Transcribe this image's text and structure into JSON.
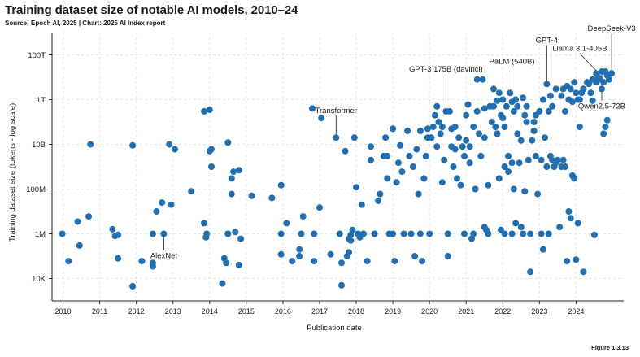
{
  "header": {
    "title": "Training dataset size of notable AI models, 2010–24",
    "source": "Source: Epoch AI, 2025 | Chart: 2025 AI Index report"
  },
  "footer": {
    "figure_label": "Figure 1.3.13"
  },
  "chart_data": {
    "type": "scatter",
    "title": "Training dataset size of notable AI models, 2010–24",
    "xlabel": "Publication date",
    "ylabel": "Training dataset size (tokens - log scale)",
    "xlim": [
      2009.7,
      2025.3
    ],
    "ylim": [
      1000,
      1000000000000000.0
    ],
    "y_scale": "log",
    "x_ticks": [
      2010,
      2011,
      2012,
      2013,
      2014,
      2015,
      2016,
      2017,
      2018,
      2019,
      2020,
      2021,
      2022,
      2023,
      2024
    ],
    "y_ticks": [
      {
        "value": 10000,
        "label": "10K"
      },
      {
        "value": 1000000,
        "label": "1M"
      },
      {
        "value": 100000000,
        "label": "100M"
      },
      {
        "value": 10000000000,
        "label": "10B"
      },
      {
        "value": 1000000000000,
        "label": "1T"
      },
      {
        "value": 100000000000000,
        "label": "100T"
      }
    ],
    "grid": true,
    "point_color": "#1f6fb2",
    "annotations": [
      {
        "label": "AlexNet",
        "x": 2012.75,
        "y": 1000000,
        "text_x": 2012.75,
        "text_y": 80000
      },
      {
        "label": "Transformer",
        "x": 2017.45,
        "y": 20000000000,
        "text_x": 2017.45,
        "text_y": 250000000000
      },
      {
        "label": "GPT-3 175B (davinci)",
        "x": 2020.45,
        "y": 300000000000,
        "text_x": 2020.45,
        "text_y": 18000000000000
      },
      {
        "label": "PaLM (540B)",
        "x": 2022.25,
        "y": 800000000000,
        "text_x": 2022.25,
        "text_y": 40000000000000
      },
      {
        "label": "GPT-4",
        "x": 2023.2,
        "y": 5000000000000,
        "text_x": 2023.2,
        "text_y": 350000000000000
      },
      {
        "label": "Llama 3.1-405B",
        "x": 2024.55,
        "y": 15000000000000,
        "text_x": 2024.1,
        "text_y": 150000000000000
      },
      {
        "label": "DeepSeek-V3",
        "x": 2024.97,
        "y": 15000000000000,
        "text_x": 2024.97,
        "text_y": 1200000000000000
      },
      {
        "label": "Qwen2.5-72B",
        "x": 2024.7,
        "y": 18000000000000,
        "text_x": 2024.7,
        "text_y": 400000000000
      }
    ],
    "points": [
      {
        "x": 2009.98,
        "y": 1000000
      },
      {
        "x": 2010.15,
        "y": 60000
      },
      {
        "x": 2010.4,
        "y": 3500000
      },
      {
        "x": 2010.45,
        "y": 300000
      },
      {
        "x": 2010.7,
        "y": 6000000
      },
      {
        "x": 2010.75,
        "y": 10000000000
      },
      {
        "x": 2011.35,
        "y": 1600000
      },
      {
        "x": 2011.42,
        "y": 800000
      },
      {
        "x": 2011.5,
        "y": 900000
      },
      {
        "x": 2011.5,
        "y": 80000
      },
      {
        "x": 2011.9,
        "y": 9000000000
      },
      {
        "x": 2011.9,
        "y": 4500
      },
      {
        "x": 2012.15,
        "y": 60000
      },
      {
        "x": 2012.45,
        "y": 1000000
      },
      {
        "x": 2012.45,
        "y": 50000
      },
      {
        "x": 2012.45,
        "y": 35000
      },
      {
        "x": 2012.55,
        "y": 10000000
      },
      {
        "x": 2012.7,
        "y": 25000000
      },
      {
        "x": 2012.75,
        "y": 1000000
      },
      {
        "x": 2012.9,
        "y": 10000000000
      },
      {
        "x": 2012.95,
        "y": 20000000
      },
      {
        "x": 2013.05,
        "y": 6000000000
      },
      {
        "x": 2013.5,
        "y": 80000000
      },
      {
        "x": 2013.85,
        "y": 300000000000
      },
      {
        "x": 2013.85,
        "y": 3000000
      },
      {
        "x": 2013.9,
        "y": 700000
      },
      {
        "x": 2013.92,
        "y": 1000000
      },
      {
        "x": 2014.0,
        "y": 5000000000
      },
      {
        "x": 2014.05,
        "y": 6000000000
      },
      {
        "x": 2014.05,
        "y": 1000000000
      },
      {
        "x": 2014.0,
        "y": 350000000000
      },
      {
        "x": 2014.4,
        "y": 80000
      },
      {
        "x": 2014.45,
        "y": 50000
      },
      {
        "x": 2014.35,
        "y": 6000
      },
      {
        "x": 2014.5,
        "y": 12000000000
      },
      {
        "x": 2014.5,
        "y": 1000000
      },
      {
        "x": 2014.5,
        "y": 1000000
      },
      {
        "x": 2014.6,
        "y": 300000000
      },
      {
        "x": 2014.6,
        "y": 60000000
      },
      {
        "x": 2014.65,
        "y": 600000000
      },
      {
        "x": 2014.7,
        "y": 1200000
      },
      {
        "x": 2014.8,
        "y": 700000000
      },
      {
        "x": 2014.8,
        "y": 40000
      },
      {
        "x": 2014.85,
        "y": 600000
      },
      {
        "x": 2015.15,
        "y": 50000000
      },
      {
        "x": 2015.7,
        "y": 40000000
      },
      {
        "x": 2015.95,
        "y": 150000000
      },
      {
        "x": 2015.95,
        "y": 1000000
      },
      {
        "x": 2015.95,
        "y": 120000
      },
      {
        "x": 2016.1,
        "y": 3000000
      },
      {
        "x": 2016.25,
        "y": 60000
      },
      {
        "x": 2016.45,
        "y": 200000
      },
      {
        "x": 2016.45,
        "y": 100000
      },
      {
        "x": 2016.5,
        "y": 1000000
      },
      {
        "x": 2016.55,
        "y": 6000000
      },
      {
        "x": 2016.8,
        "y": 400000000000
      },
      {
        "x": 2016.85,
        "y": 60000
      },
      {
        "x": 2016.85,
        "y": 1000000
      },
      {
        "x": 2017.0,
        "y": 15000000
      },
      {
        "x": 2017.05,
        "y": 150000000000
      },
      {
        "x": 2017.3,
        "y": 120000
      },
      {
        "x": 2017.45,
        "y": 20000000000
      },
      {
        "x": 2017.55,
        "y": 1000000
      },
      {
        "x": 2017.6,
        "y": 50000
      },
      {
        "x": 2017.6,
        "y": 5000
      },
      {
        "x": 2017.7,
        "y": 5000000000
      },
      {
        "x": 2017.75,
        "y": 100000
      },
      {
        "x": 2017.8,
        "y": 600000
      },
      {
        "x": 2017.8,
        "y": 150000
      },
      {
        "x": 2017.85,
        "y": 900000
      },
      {
        "x": 2017.85,
        "y": 500000
      },
      {
        "x": 2017.9,
        "y": 1500000
      },
      {
        "x": 2017.95,
        "y": 20000000000
      },
      {
        "x": 2018.0,
        "y": 120000000
      },
      {
        "x": 2018.05,
        "y": 1000000
      },
      {
        "x": 2018.1,
        "y": 700000
      },
      {
        "x": 2018.15,
        "y": 20000000
      },
      {
        "x": 2018.2,
        "y": 1000000
      },
      {
        "x": 2018.3,
        "y": 60000
      },
      {
        "x": 2018.4,
        "y": 8000000000
      },
      {
        "x": 2018.4,
        "y": 2000000000
      },
      {
        "x": 2018.5,
        "y": 1000000
      },
      {
        "x": 2018.6,
        "y": 30000000
      },
      {
        "x": 2018.65,
        "y": 60000000
      },
      {
        "x": 2018.75,
        "y": 3000000000
      },
      {
        "x": 2018.8,
        "y": 20000000000
      },
      {
        "x": 2018.85,
        "y": 3000000000
      },
      {
        "x": 2018.85,
        "y": 300000000
      },
      {
        "x": 2018.9,
        "y": 1000000
      },
      {
        "x": 2019.0,
        "y": 50000000000
      },
      {
        "x": 2019.0,
        "y": 1000000
      },
      {
        "x": 2019.05,
        "y": 60000
      },
      {
        "x": 2019.1,
        "y": 200000000
      },
      {
        "x": 2019.15,
        "y": 1500000000
      },
      {
        "x": 2019.2,
        "y": 9000000000
      },
      {
        "x": 2019.25,
        "y": 600000000
      },
      {
        "x": 2019.3,
        "y": 1000000
      },
      {
        "x": 2019.4,
        "y": 40000000000
      },
      {
        "x": 2019.45,
        "y": 3000000000
      },
      {
        "x": 2019.5,
        "y": 1000000
      },
      {
        "x": 2019.55,
        "y": 1000000000
      },
      {
        "x": 2019.6,
        "y": 100000
      },
      {
        "x": 2019.65,
        "y": 6000000000
      },
      {
        "x": 2019.7,
        "y": 60000000
      },
      {
        "x": 2019.75,
        "y": 40000000000
      },
      {
        "x": 2019.75,
        "y": 1000000
      },
      {
        "x": 2019.8,
        "y": 60000
      },
      {
        "x": 2019.85,
        "y": 300000000
      },
      {
        "x": 2019.9,
        "y": 3000000000
      },
      {
        "x": 2019.95,
        "y": 50000000000
      },
      {
        "x": 2019.95,
        "y": 20000000000
      },
      {
        "x": 2020.0,
        "y": 1000000
      },
      {
        "x": 2020.05,
        "y": 20000000000
      },
      {
        "x": 2020.1,
        "y": 60000000000
      },
      {
        "x": 2020.15,
        "y": 200000000000
      },
      {
        "x": 2020.2,
        "y": 500000000000
      },
      {
        "x": 2020.2,
        "y": 8000000000
      },
      {
        "x": 2020.25,
        "y": 100000000000
      },
      {
        "x": 2020.3,
        "y": 30000000000
      },
      {
        "x": 2020.35,
        "y": 200000000
      },
      {
        "x": 2020.35,
        "y": 60000000000
      },
      {
        "x": 2020.4,
        "y": 2000000000
      },
      {
        "x": 2020.45,
        "y": 300000000000
      },
      {
        "x": 2020.5,
        "y": 1000000
      },
      {
        "x": 2020.5,
        "y": 100000
      },
      {
        "x": 2020.55,
        "y": 300000000000
      },
      {
        "x": 2020.6,
        "y": 50000000000
      },
      {
        "x": 2020.6,
        "y": 8000000000
      },
      {
        "x": 2020.65,
        "y": 1000000000
      },
      {
        "x": 2020.7,
        "y": 60000000000
      },
      {
        "x": 2020.7,
        "y": 6000000000
      },
      {
        "x": 2020.75,
        "y": 300000000
      },
      {
        "x": 2020.8,
        "y": 20000000000
      },
      {
        "x": 2020.85,
        "y": 150000000
      },
      {
        "x": 2020.9,
        "y": 8000000000
      },
      {
        "x": 2020.95,
        "y": 3000000000
      },
      {
        "x": 2020.95,
        "y": 1000000
      },
      {
        "x": 2021.0,
        "y": 200000000000
      },
      {
        "x": 2021.0,
        "y": 15000000000
      },
      {
        "x": 2021.05,
        "y": 600000000000
      },
      {
        "x": 2021.1,
        "y": 8000000000
      },
      {
        "x": 2021.1,
        "y": 1500000000
      },
      {
        "x": 2021.15,
        "y": 600000
      },
      {
        "x": 2021.2,
        "y": 1000000
      },
      {
        "x": 2021.2,
        "y": 60000000000
      },
      {
        "x": 2021.25,
        "y": 100000000
      },
      {
        "x": 2021.3,
        "y": 8000000000000
      },
      {
        "x": 2021.3,
        "y": 300000000000
      },
      {
        "x": 2021.35,
        "y": 30000000000
      },
      {
        "x": 2021.4,
        "y": 3000000000
      },
      {
        "x": 2021.45,
        "y": 8000000000000
      },
      {
        "x": 2021.5,
        "y": 400000000000
      },
      {
        "x": 2021.5,
        "y": 20000000000
      },
      {
        "x": 2021.5,
        "y": 2000000
      },
      {
        "x": 2021.55,
        "y": 1500000
      },
      {
        "x": 2021.6,
        "y": 150000000
      },
      {
        "x": 2021.6,
        "y": 1000000
      },
      {
        "x": 2021.65,
        "y": 500000000000
      },
      {
        "x": 2021.7,
        "y": 100000000000
      },
      {
        "x": 2021.75,
        "y": 3000000000000
      },
      {
        "x": 2021.75,
        "y": 500000000000
      },
      {
        "x": 2021.8,
        "y": 60000000000
      },
      {
        "x": 2021.85,
        "y": 900000000000
      },
      {
        "x": 2021.85,
        "y": 30000000000
      },
      {
        "x": 2021.9,
        "y": 2000000000000
      },
      {
        "x": 2021.9,
        "y": 300000000
      },
      {
        "x": 2021.95,
        "y": 200000000000
      },
      {
        "x": 2021.95,
        "y": 1500000
      },
      {
        "x": 2022.0,
        "y": 1000000000000
      },
      {
        "x": 2022.0,
        "y": 150000000000
      },
      {
        "x": 2022.05,
        "y": 60000000000
      },
      {
        "x": 2022.05,
        "y": 1000000000
      },
      {
        "x": 2022.05,
        "y": 1000000
      },
      {
        "x": 2022.1,
        "y": 500000000000
      },
      {
        "x": 2022.15,
        "y": 3000000000
      },
      {
        "x": 2022.15,
        "y": 600000000
      },
      {
        "x": 2022.2,
        "y": 2000000000000
      },
      {
        "x": 2022.25,
        "y": 800000000000
      },
      {
        "x": 2022.25,
        "y": 1500000000
      },
      {
        "x": 2022.25,
        "y": 1000000
      },
      {
        "x": 2022.3,
        "y": 300000000000
      },
      {
        "x": 2022.3,
        "y": 100000000
      },
      {
        "x": 2022.35,
        "y": 1000000000000
      },
      {
        "x": 2022.35,
        "y": 3000000
      },
      {
        "x": 2022.4,
        "y": 500000000000
      },
      {
        "x": 2022.4,
        "y": 30000000000
      },
      {
        "x": 2022.45,
        "y": 1500000000
      },
      {
        "x": 2022.5,
        "y": 15000000000
      },
      {
        "x": 2022.5,
        "y": 2000000
      },
      {
        "x": 2022.55,
        "y": 1200000000000
      },
      {
        "x": 2022.55,
        "y": 1000000
      },
      {
        "x": 2022.6,
        "y": 200000000000
      },
      {
        "x": 2022.6,
        "y": 80000000
      },
      {
        "x": 2022.65,
        "y": 500000000000
      },
      {
        "x": 2022.65,
        "y": 100000000000
      },
      {
        "x": 2022.7,
        "y": 2000000000
      },
      {
        "x": 2022.75,
        "y": 1000000
      },
      {
        "x": 2022.75,
        "y": 20000
      },
      {
        "x": 2022.8,
        "y": 15000000000
      },
      {
        "x": 2022.85,
        "y": 100000000000
      },
      {
        "x": 2022.85,
        "y": 40000000000
      },
      {
        "x": 2022.9,
        "y": 200000000000
      },
      {
        "x": 2022.9,
        "y": 3000000000
      },
      {
        "x": 2022.95,
        "y": 60000000
      },
      {
        "x": 2023.0,
        "y": 300000000000
      },
      {
        "x": 2023.05,
        "y": 2000000000
      },
      {
        "x": 2023.05,
        "y": 1000000
      },
      {
        "x": 2023.1,
        "y": 1000000000000
      },
      {
        "x": 2023.1,
        "y": 200000
      },
      {
        "x": 2023.15,
        "y": 20000000000
      },
      {
        "x": 2023.2,
        "y": 5000000000000
      },
      {
        "x": 2023.2,
        "y": 1000000000
      },
      {
        "x": 2023.25,
        "y": 300000000000
      },
      {
        "x": 2023.25,
        "y": 1000000
      },
      {
        "x": 2023.3,
        "y": 1500000000000
      },
      {
        "x": 2023.3,
        "y": 3000000000
      },
      {
        "x": 2023.35,
        "y": 500000000000
      },
      {
        "x": 2023.35,
        "y": 2000000000
      },
      {
        "x": 2023.4,
        "y": 1000000000
      },
      {
        "x": 2023.45,
        "y": 3000000000000
      },
      {
        "x": 2023.45,
        "y": 1500000000
      },
      {
        "x": 2023.5,
        "y": 2000000000
      },
      {
        "x": 2023.55,
        "y": 2000000
      },
      {
        "x": 2023.6,
        "y": 1500000000000
      },
      {
        "x": 2023.6,
        "y": 1000000000
      },
      {
        "x": 2023.65,
        "y": 3000000000000
      },
      {
        "x": 2023.65,
        "y": 2000000000
      },
      {
        "x": 2023.7,
        "y": 300000000000
      },
      {
        "x": 2023.7,
        "y": 1000000000
      },
      {
        "x": 2023.75,
        "y": 4000000000000
      },
      {
        "x": 2023.75,
        "y": 60000
      },
      {
        "x": 2023.8,
        "y": 1000000000000
      },
      {
        "x": 2023.8,
        "y": 10000000
      },
      {
        "x": 2023.85,
        "y": 3000000000000
      },
      {
        "x": 2023.85,
        "y": 5000000
      },
      {
        "x": 2023.9,
        "y": 800000000000
      },
      {
        "x": 2023.9,
        "y": 400000000
      },
      {
        "x": 2023.95,
        "y": 6000000000000
      },
      {
        "x": 2023.95,
        "y": 300000000
      },
      {
        "x": 2024.0,
        "y": 2000000000000
      },
      {
        "x": 2024.0,
        "y": 70000
      },
      {
        "x": 2024.05,
        "y": 1000000000000
      },
      {
        "x": 2024.05,
        "y": 3000000
      },
      {
        "x": 2024.1,
        "y": 60000000000
      },
      {
        "x": 2024.1,
        "y": 1000000000000
      },
      {
        "x": 2024.15,
        "y": 2000000000000
      },
      {
        "x": 2024.2,
        "y": 3000000000000
      },
      {
        "x": 2024.2,
        "y": 20000
      },
      {
        "x": 2024.3,
        "y": 6000000000000
      },
      {
        "x": 2024.35,
        "y": 5000000000000
      },
      {
        "x": 2024.4,
        "y": 2000000000000
      },
      {
        "x": 2024.45,
        "y": 8000000000000
      },
      {
        "x": 2024.45,
        "y": 900000000000
      },
      {
        "x": 2024.5,
        "y": 900000
      },
      {
        "x": 2024.55,
        "y": 15000000000000
      },
      {
        "x": 2024.55,
        "y": 6000000000000
      },
      {
        "x": 2024.6,
        "y": 10000000000000
      },
      {
        "x": 2024.65,
        "y": 8000000000000
      },
      {
        "x": 2024.7,
        "y": 18000000000000
      },
      {
        "x": 2024.7,
        "y": 3000000000000
      },
      {
        "x": 2024.75,
        "y": 6000000000000
      },
      {
        "x": 2024.75,
        "y": 30000000000
      },
      {
        "x": 2024.8,
        "y": 18000000000000
      },
      {
        "x": 2024.8,
        "y": 60000000000
      },
      {
        "x": 2024.85,
        "y": 12000000000000
      },
      {
        "x": 2024.85,
        "y": 120000000000
      },
      {
        "x": 2024.9,
        "y": 8000000000000
      },
      {
        "x": 2024.97,
        "y": 15000000000000
      }
    ]
  }
}
